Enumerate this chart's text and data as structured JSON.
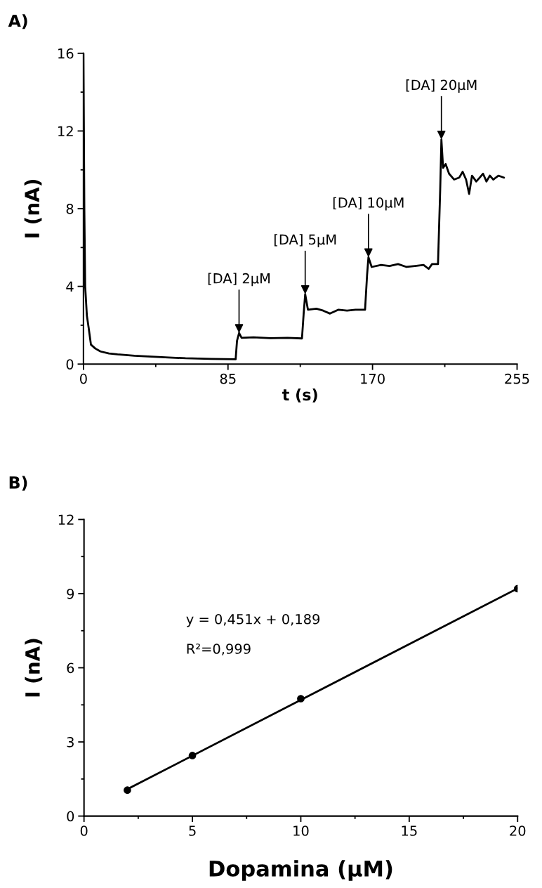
{
  "chart_data": [
    {
      "type": "line",
      "title": "A)",
      "xlabel": "t (s)",
      "ylabel": "I (nA)",
      "xlim": [
        0,
        255
      ],
      "xticks": [
        0,
        {
          "value": 42.5,
          "label": null
        },
        85,
        {
          "value": 127.5,
          "label": null
        },
        170,
        {
          "value": 212.5,
          "label": null
        },
        255
      ],
      "ylim": [
        0,
        16
      ],
      "yticks": [
        0,
        {
          "value": 2,
          "label": null
        },
        4,
        {
          "value": 6,
          "label": null
        },
        8,
        {
          "value": 10,
          "label": null
        },
        12,
        {
          "value": 14,
          "label": null
        },
        16
      ],
      "grid": false,
      "legend": false,
      "marker": "none",
      "line_style": "solid",
      "series": [
        {
          "color": "#000000",
          "x": [
            0,
            0.5,
            1,
            2,
            3,
            4.4,
            7,
            10,
            15,
            20,
            30,
            40,
            50,
            60,
            75,
            89.5,
            90.3,
            91.5,
            93,
            100,
            110,
            120,
            128.5,
            129.5,
            130.4,
            132,
            137,
            141,
            145,
            150,
            155,
            160,
            165.6,
            166.8,
            167.6,
            169.5,
            175,
            180,
            185,
            190,
            195,
            200,
            203,
            205,
            208.5,
            209.8,
            210.5,
            211.5,
            213,
            215,
            218,
            221,
            223,
            225,
            226.8,
            228.5,
            231,
            233,
            235,
            237,
            239,
            241,
            244,
            247.2
          ],
          "values": [
            16,
            8,
            4,
            2.5,
            1.9,
            1.0,
            0.8,
            0.65,
            0.55,
            0.5,
            0.43,
            0.38,
            0.34,
            0.3,
            0.27,
            0.25,
            1.2,
            1.6,
            1.35,
            1.38,
            1.33,
            1.35,
            1.32,
            2.6,
            3.6,
            2.8,
            2.85,
            2.75,
            2.6,
            2.8,
            2.75,
            2.8,
            2.8,
            4.6,
            5.5,
            5.0,
            5.1,
            5.05,
            5.15,
            5.0,
            5.05,
            5.1,
            4.9,
            5.15,
            5.15,
            9.0,
            11.56,
            10.1,
            10.3,
            9.8,
            9.5,
            9.6,
            9.9,
            9.5,
            8.76,
            9.7,
            9.4,
            9.6,
            9.8,
            9.4,
            9.7,
            9.5,
            9.7,
            9.6
          ]
        }
      ],
      "annotations": [
        {
          "text": "[DA] 2μM",
          "x": 91.5,
          "y": 1.6
        },
        {
          "text": "[DA] 5μM",
          "x": 130.4,
          "y": 3.6
        },
        {
          "text": "[DA] 10μM",
          "x": 167.6,
          "y": 5.5
        },
        {
          "text": "[DA] 20μM",
          "x": 210.5,
          "y": 11.56
        }
      ]
    },
    {
      "type": "scatter",
      "title": "B)",
      "xlabel": "Dopamina (μM)",
      "ylabel": "I (nA)",
      "xlim": [
        0,
        20
      ],
      "xticks": [
        0,
        {
          "value": 2.5,
          "label": null
        },
        5,
        {
          "value": 7.5,
          "label": null
        },
        10,
        {
          "value": 12.5,
          "label": null
        },
        15,
        {
          "value": 17.5,
          "label": null
        },
        20
      ],
      "ylim": [
        0,
        12
      ],
      "yticks": [
        0,
        {
          "value": 1.5,
          "label": null
        },
        3,
        {
          "value": 4.5,
          "label": null
        },
        6,
        {
          "value": 7.5,
          "label": null
        },
        9,
        {
          "value": 10.5,
          "label": null
        },
        12
      ],
      "grid": false,
      "legend": false,
      "series": [
        {
          "color": "#000000",
          "marker": "circle",
          "x": [
            2,
            5,
            10,
            20
          ],
          "values": [
            1.05,
            2.45,
            4.75,
            9.2
          ]
        },
        {
          "type": "line",
          "color": "#000000",
          "x": [
            2,
            20
          ],
          "values": [
            1.09,
            9.21
          ]
        }
      ],
      "annotations": [
        "y = 0,451x + 0,189",
        "R²=0,999"
      ]
    }
  ]
}
